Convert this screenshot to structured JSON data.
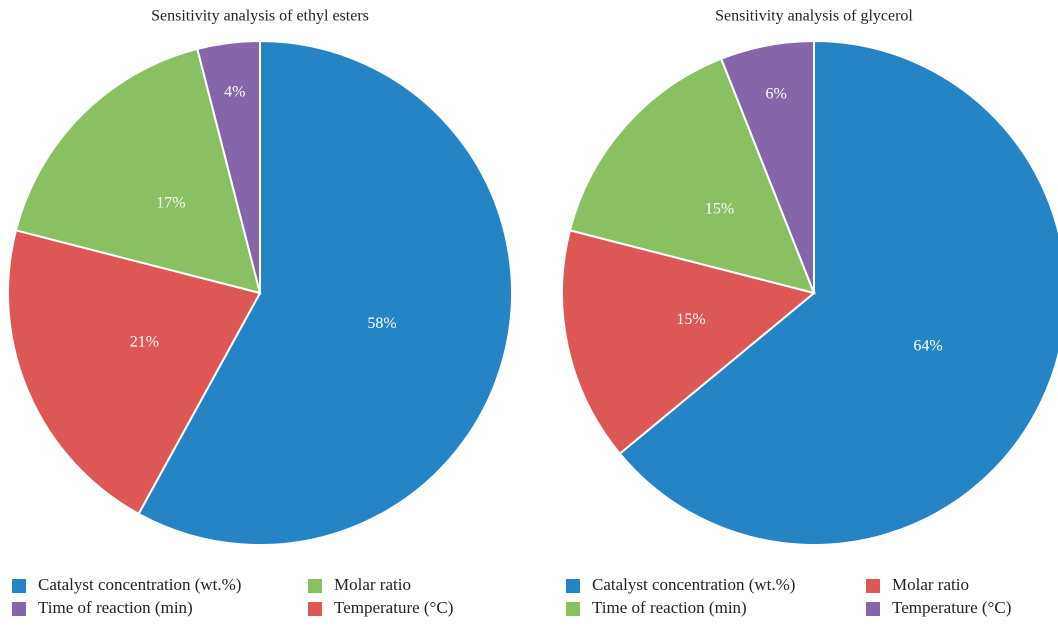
{
  "chart_data": [
    {
      "type": "pie",
      "title": "Sensitivity analysis of ethyl esters",
      "categories": [
        "Catalyst concentration (wt.%)",
        "Molar ratio",
        "Time of reaction (min)",
        "Temperature (°C)"
      ],
      "values": [
        58,
        17,
        4,
        21
      ],
      "value_labels": [
        "58%",
        "17%",
        "4%",
        "21%"
      ],
      "colors": [
        "#2584c4",
        "#88c062",
        "#8566ab",
        "#dd5855"
      ],
      "legend": "bottom"
    },
    {
      "type": "pie",
      "title": "Sensitivity analysis of glycerol",
      "categories": [
        "Catalyst concentration (wt.%)",
        "Molar ratio",
        "Time of reaction (min)",
        "Temperature (°C)"
      ],
      "values": [
        64,
        15,
        15,
        6
      ],
      "value_labels": [
        "64%",
        "15%",
        "15%",
        "6%"
      ],
      "colors": [
        "#2584c4",
        "#dd5855",
        "#88c062",
        "#8566ab"
      ],
      "legend": "bottom"
    }
  ]
}
